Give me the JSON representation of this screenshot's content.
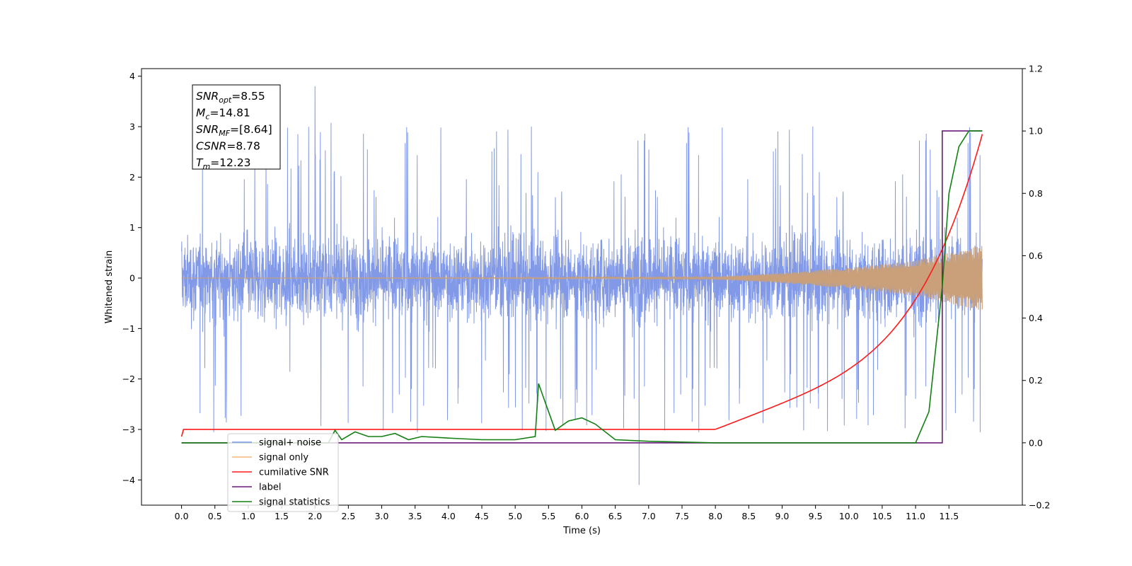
{
  "chart_data": {
    "type": "line",
    "title": "",
    "xlabel": "Time (s)",
    "ylabel_left": "Whitened strain",
    "ylabel_right": "",
    "xlim": [
      -0.6,
      12.6
    ],
    "ylim_left": [
      -4.5,
      4.15
    ],
    "ylim_right": [
      -0.2,
      1.2
    ],
    "x_ticks": [
      "0.0",
      "0.5",
      "1.0",
      "1.5",
      "2.0",
      "2.5",
      "3.0",
      "3.5",
      "4.0",
      "4.5",
      "5.0",
      "5.5",
      "6.0",
      "6.5",
      "7.0",
      "7.5",
      "8.0",
      "8.5",
      "9.0",
      "9.5",
      "10.0",
      "10.5",
      "11.0",
      "11.5"
    ],
    "y_left_ticks": [
      4,
      3,
      2,
      1,
      0,
      -1,
      -2,
      -3,
      -4
    ],
    "y_left_tick_labels": [
      "4",
      "3",
      "2",
      "1",
      "0",
      "−1",
      "−2",
      "−3",
      "−4"
    ],
    "y_right_ticks": [
      1.2,
      1.0,
      0.8,
      0.6,
      0.4,
      0.2,
      0.0,
      -0.2
    ],
    "y_right_tick_labels": [
      "1.2",
      "1.0",
      "0.8",
      "0.6",
      "0.4",
      "0.2",
      "0.0",
      "−0.2"
    ],
    "grid": false,
    "legend_position": "lower-left",
    "legend": [
      {
        "label": "signal+ noise",
        "color": "#7b93e6"
      },
      {
        "label": "signal only",
        "color": "#f5b97a"
      },
      {
        "label": "cumilative SNR",
        "color": "#ff1a1a"
      },
      {
        "label": "label",
        "color": "#6a1b7a"
      },
      {
        "label": "signal statistics",
        "color": "#138013"
      }
    ],
    "info_box": [
      {
        "symbol": "SNR",
        "sub": "opt",
        "value": "=8.55"
      },
      {
        "symbol": "M",
        "sub": "c",
        "value": "=14.81"
      },
      {
        "symbol": "SNR",
        "sub": "MF",
        "value": "=[8.64]"
      },
      {
        "symbol": "CSNR",
        "sub": "",
        "value": "=8.78"
      },
      {
        "symbol": "T",
        "sub": "m",
        "value": "=12.23"
      }
    ],
    "series": [
      {
        "name": "signal+ noise",
        "axis": "left",
        "color": "#7b93e6",
        "duration_s": 12.0,
        "noise_band": [
          -1.8,
          1.8
        ],
        "spike_max": 3.8,
        "spike_min": -4.1
      },
      {
        "name": "signal only",
        "axis": "left",
        "color": "#c9a07a",
        "chirp_amplitude": [
          [
            0,
            0.0
          ],
          [
            8.0,
            0.02
          ],
          [
            9.0,
            0.1
          ],
          [
            10.0,
            0.2
          ],
          [
            11.0,
            0.35
          ],
          [
            11.5,
            0.5
          ],
          [
            12.0,
            0.65
          ]
        ]
      },
      {
        "name": "cumilative SNR",
        "axis": "right",
        "color": "#ff1a1a",
        "x": [
          0.0,
          0.02,
          8.0,
          8.5,
          9.0,
          9.5,
          10.0,
          10.5,
          11.0,
          11.5,
          12.0
        ],
        "y": [
          0.02,
          0.043,
          0.043,
          0.06,
          0.095,
          0.15,
          0.21,
          0.29,
          0.41,
          0.62,
          0.99
        ]
      },
      {
        "name": "label",
        "axis": "right",
        "color": "#6a1b7a",
        "x": [
          0.0,
          11.4,
          11.4,
          11.9,
          12.0
        ],
        "y": [
          0.0,
          0.0,
          1.0,
          1.0,
          1.0
        ]
      },
      {
        "name": "signal statistics",
        "axis": "right",
        "color": "#138013",
        "x": [
          0.0,
          2.2,
          2.3,
          2.4,
          2.6,
          2.8,
          3.0,
          3.2,
          3.4,
          3.6,
          4.0,
          4.5,
          5.0,
          5.3,
          5.35,
          5.45,
          5.6,
          5.8,
          6.0,
          6.2,
          6.5,
          7.0,
          8.0,
          9.0,
          10.0,
          11.0,
          11.2,
          11.4,
          11.5,
          11.65,
          11.8,
          12.0
        ],
        "y": [
          0.0,
          0.0,
          0.04,
          0.01,
          0.035,
          0.02,
          0.02,
          0.03,
          0.01,
          0.02,
          0.015,
          0.01,
          0.01,
          0.02,
          0.19,
          0.13,
          0.04,
          0.07,
          0.08,
          0.06,
          0.01,
          0.005,
          0.0,
          0.0,
          0.0,
          0.0,
          0.1,
          0.5,
          0.8,
          0.95,
          1.0,
          1.0
        ]
      }
    ]
  }
}
